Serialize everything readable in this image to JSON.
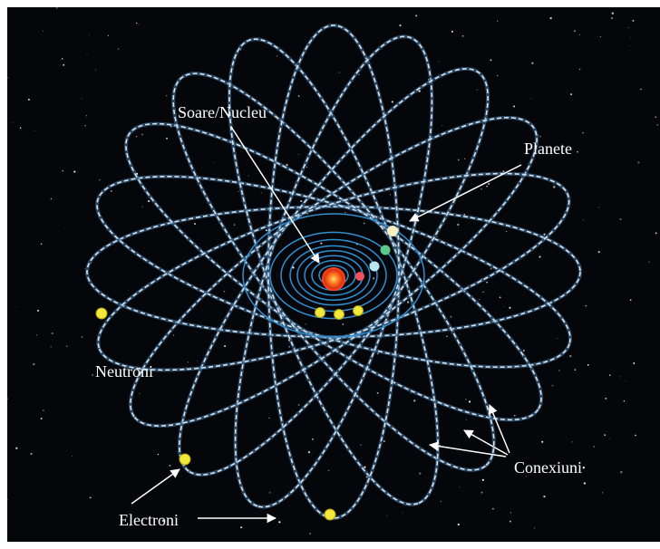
{
  "labels": {
    "sun": "Soare/Nucleu",
    "planets": "Planete",
    "neutrons": "Neutroni",
    "connections": "Conexiuni",
    "electrons": "Electroni"
  }
}
